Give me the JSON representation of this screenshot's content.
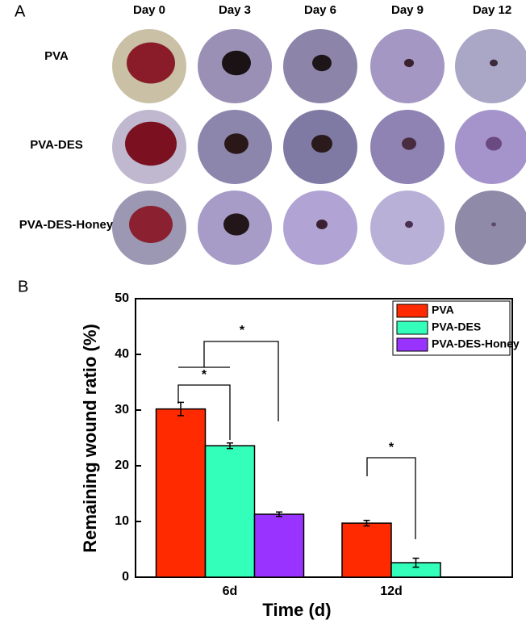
{
  "panel_a": {
    "label": "A",
    "days": [
      "Day 0",
      "Day 3",
      "Day 6",
      "Day 9",
      "Day 12"
    ],
    "groups": [
      "PVA",
      "PVA-DES",
      "PVA-DES-Honey"
    ]
  },
  "chart_data": {
    "type": "bar",
    "panel_label": "B",
    "x_label": "Time (d)",
    "y_label": "Remaining wound ratio (%)",
    "categories": [
      "6d",
      "12d"
    ],
    "series": [
      {
        "name": "PVA",
        "color": "#ff2a00",
        "values": [
          30.2,
          9.7
        ],
        "errors": [
          1.2,
          0.5
        ]
      },
      {
        "name": "PVA-DES",
        "color": "#33ffbb",
        "values": [
          23.6,
          2.6
        ],
        "errors": [
          0.5,
          0.8
        ]
      },
      {
        "name": "PVA-DES-Honey",
        "color": "#9933ff",
        "values": [
          11.3,
          null
        ],
        "errors": [
          0.4,
          null
        ]
      }
    ],
    "ylim": [
      0,
      50
    ],
    "yticks": [
      0,
      10,
      20,
      30,
      40,
      50
    ],
    "legend": "upper right",
    "annotations": [
      "*",
      "*",
      "*"
    ]
  }
}
